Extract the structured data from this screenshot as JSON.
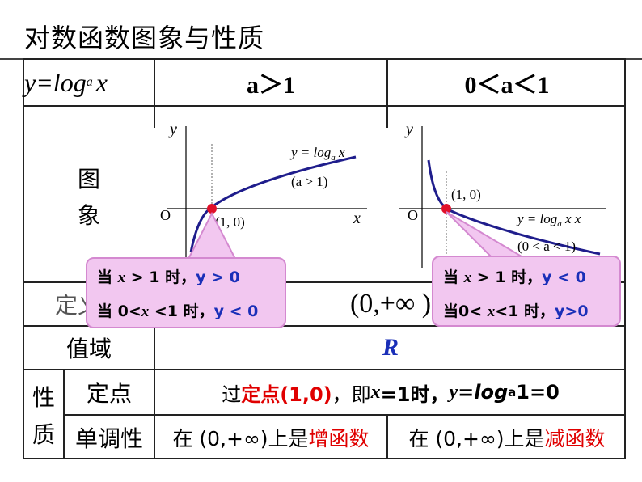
{
  "title": "对数函数图象与性质",
  "header": {
    "func": "y=log",
    "func_sub": "a",
    "func_x": "x",
    "col1": "a＞1",
    "col2": "0＜a＜1"
  },
  "rows": {
    "graph_label": "图象",
    "graph_label_1": "图",
    "graph_label_2": "象",
    "domain_label": "定义域",
    "domain_value": "(0,+∞ )",
    "range_label": "值域",
    "range_value": "R",
    "properties_label_1": "性",
    "properties_label_2": "质",
    "fixed_point_label": "定点",
    "fixed_point_text": {
      "p1": "过",
      "p2": "定点(1,0)",
      "p3": "，即",
      "p4": "x",
      "p5": "=1时，",
      "p6": "y",
      "p7": "=",
      "p8": "log",
      "p9": "a",
      "p10": "1=0"
    },
    "monotonic_label": "单调性",
    "mono_left": {
      "pre": "在 (0,+∞)上是",
      "key": "增函数"
    },
    "mono_right": {
      "pre": "在 (0,+∞)上是",
      "key": "减函数"
    }
  },
  "graph_left": {
    "y_label": "y",
    "x_label": "x",
    "origin": "O",
    "curve_label": "y = log",
    "curve_label_sub": "a",
    "curve_label_x": " x",
    "condition": "(a > 1)",
    "point": "(1, 0)"
  },
  "graph_right": {
    "y_label": "y",
    "origin": "O",
    "curve_label": "y = log",
    "curve_label_sub": "a",
    "curve_label_x": " x x",
    "condition": "(0 < a < 1)",
    "point": "(1, 0)"
  },
  "bubble_left": {
    "line1_pre": "当 ",
    "line1_x": "x",
    "line1_mid": " > 1 时，",
    "line1_res": "y > 0",
    "line2_pre": "当 0<",
    "line2_x": "x",
    "line2_mid": " <1 时，",
    "line2_res": "y < 0"
  },
  "bubble_right": {
    "line1_pre": "当 ",
    "line1_x": "x",
    "line1_mid": " > 1 时，",
    "line1_res": "y < 0",
    "line2_pre": "当0< ",
    "line2_x": "x",
    "line2_mid": "<1 时，",
    "line2_res": "y>0"
  },
  "colors": {
    "curve": "#1f1d8c",
    "point": "#e0102a",
    "highlight": "#e00000",
    "blue_text": "#1a2fb8",
    "bubble": "#f2c7f0"
  }
}
